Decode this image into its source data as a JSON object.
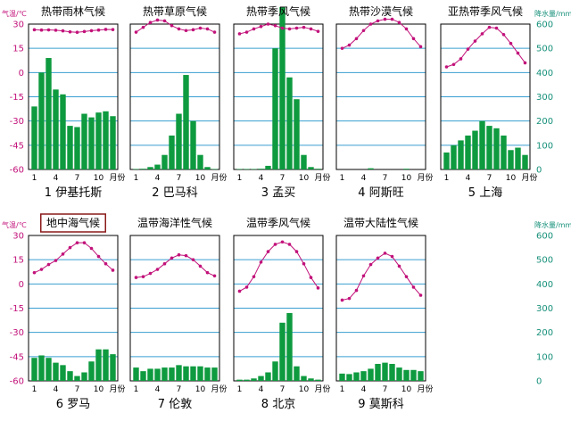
{
  "labels": {
    "temp_axis": "气温/℃",
    "precip_axis": "降水量/mm",
    "month_unit": "月份",
    "month_ticks": [
      "1",
      "4",
      "7",
      "10"
    ],
    "temp_ticks": [
      "30",
      "15",
      "0",
      "-15",
      "-30",
      "-45",
      "-60"
    ],
    "precip_ticks": [
      "600",
      "500",
      "400",
      "300",
      "200",
      "100",
      "0"
    ]
  },
  "colors": {
    "temp_line": "#c2127a",
    "bars": "#0e9a3f",
    "axis_text_left": "#c2127a",
    "axis_text_right": "#16907a",
    "grid": "#3a9fd1",
    "highlight_box": "#8b1a1a"
  },
  "chart_data": [
    {
      "type": "bar",
      "title": "热带雨林气候",
      "caption": "1 伊基托斯",
      "highlight": false,
      "months": [
        1,
        2,
        3,
        4,
        5,
        6,
        7,
        8,
        9,
        10,
        11,
        12
      ],
      "temperature_c": [
        26.5,
        26.3,
        26.4,
        26.2,
        25.8,
        25.2,
        24.9,
        25.4,
        25.9,
        26.3,
        26.7,
        26.6
      ],
      "precipitation_mm": [
        260,
        400,
        460,
        330,
        310,
        180,
        175,
        230,
        215,
        235,
        240,
        220
      ],
      "ylim_temp": [
        -60,
        30
      ],
      "ylim_precip": [
        0,
        600
      ]
    },
    {
      "type": "bar",
      "title": "热带草原气候",
      "caption": "2 巴马科",
      "highlight": false,
      "months": [
        1,
        2,
        3,
        4,
        5,
        6,
        7,
        8,
        9,
        10,
        11,
        12
      ],
      "temperature_c": [
        25,
        28,
        31,
        32.5,
        32,
        29,
        27,
        26,
        26.5,
        27.5,
        27,
        25
      ],
      "precipitation_mm": [
        2,
        3,
        10,
        20,
        60,
        140,
        230,
        390,
        200,
        60,
        10,
        2
      ],
      "ylim_temp": [
        -60,
        30
      ],
      "ylim_precip": [
        0,
        600
      ]
    },
    {
      "type": "bar",
      "title": "热带季风气候",
      "caption": "3 孟买",
      "highlight": false,
      "months": [
        1,
        2,
        3,
        4,
        5,
        6,
        7,
        8,
        9,
        10,
        11,
        12
      ],
      "temperature_c": [
        24,
        25,
        27,
        28.5,
        30,
        29,
        27.5,
        27,
        27.5,
        28,
        27,
        25.5
      ],
      "precipitation_mm": [
        2,
        2,
        2,
        3,
        15,
        500,
        670,
        380,
        290,
        60,
        10,
        3
      ],
      "ylim_temp": [
        -60,
        30
      ],
      "ylim_precip": [
        0,
        600
      ]
    },
    {
      "type": "bar",
      "title": "热带沙漠气候",
      "caption": "4 阿斯旺",
      "highlight": false,
      "months": [
        1,
        2,
        3,
        4,
        5,
        6,
        7,
        8,
        9,
        10,
        11,
        12
      ],
      "temperature_c": [
        15,
        17,
        21,
        26,
        30,
        32,
        33,
        33,
        31,
        27,
        21,
        16
      ],
      "precipitation_mm": [
        0,
        0,
        0,
        0,
        5,
        0,
        0,
        0,
        0,
        3,
        0,
        0
      ],
      "ylim_temp": [
        -60,
        30
      ],
      "ylim_precip": [
        0,
        600
      ]
    },
    {
      "type": "bar",
      "title": "亚热带季风气候",
      "caption": "5 上海",
      "highlight": false,
      "months": [
        1,
        2,
        3,
        4,
        5,
        6,
        7,
        8,
        9,
        10,
        11,
        12
      ],
      "temperature_c": [
        3.5,
        5,
        8.5,
        14.5,
        19.5,
        24,
        28,
        27.5,
        23.5,
        18,
        12,
        6
      ],
      "precipitation_mm": [
        70,
        100,
        120,
        140,
        160,
        200,
        180,
        170,
        140,
        80,
        90,
        60
      ],
      "ylim_temp": [
        -60,
        30
      ],
      "ylim_precip": [
        0,
        600
      ]
    },
    {
      "type": "bar",
      "title": "地中海气候",
      "caption": "6 罗马",
      "highlight": true,
      "months": [
        1,
        2,
        3,
        4,
        5,
        6,
        7,
        8,
        9,
        10,
        11,
        12
      ],
      "temperature_c": [
        7,
        9,
        12,
        14.5,
        18.5,
        22.5,
        25.5,
        25.5,
        22,
        17,
        12.5,
        8.5
      ],
      "precipitation_mm": [
        95,
        105,
        95,
        75,
        65,
        40,
        20,
        35,
        80,
        130,
        130,
        110
      ],
      "ylim_temp": [
        -60,
        30
      ],
      "ylim_precip": [
        0,
        600
      ]
    },
    {
      "type": "bar",
      "title": "温带海洋性气候",
      "caption": "7 伦敦",
      "highlight": false,
      "months": [
        1,
        2,
        3,
        4,
        5,
        6,
        7,
        8,
        9,
        10,
        11,
        12
      ],
      "temperature_c": [
        4,
        4.5,
        6.5,
        9,
        12.5,
        16,
        18,
        17.5,
        15,
        11,
        7,
        5
      ],
      "precipitation_mm": [
        55,
        40,
        50,
        50,
        55,
        55,
        65,
        60,
        60,
        60,
        55,
        55
      ],
      "ylim_temp": [
        -60,
        30
      ],
      "ylim_precip": [
        0,
        600
      ]
    },
    {
      "type": "bar",
      "title": "温带季风气候",
      "caption": "8 北京",
      "highlight": false,
      "months": [
        1,
        2,
        3,
        4,
        5,
        6,
        7,
        8,
        9,
        10,
        11,
        12
      ],
      "temperature_c": [
        -4.5,
        -2,
        4.5,
        13.5,
        20,
        24.5,
        26,
        24.5,
        20,
        12.5,
        4,
        -2.5
      ],
      "precipitation_mm": [
        5,
        5,
        10,
        20,
        35,
        80,
        240,
        280,
        60,
        20,
        10,
        5
      ],
      "ylim_temp": [
        -60,
        30
      ],
      "ylim_precip": [
        0,
        600
      ]
    },
    {
      "type": "bar",
      "title": "温带大陆性气候",
      "caption": "9 莫斯科",
      "highlight": false,
      "months": [
        1,
        2,
        3,
        4,
        5,
        6,
        7,
        8,
        9,
        10,
        11,
        12
      ],
      "temperature_c": [
        -10,
        -9,
        -4,
        5,
        12,
        16,
        19,
        17,
        11,
        4.5,
        -2,
        -7
      ],
      "precipitation_mm": [
        30,
        28,
        35,
        40,
        50,
        70,
        75,
        70,
        55,
        45,
        45,
        40
      ],
      "ylim_temp": [
        -60,
        30
      ],
      "ylim_precip": [
        0,
        600
      ]
    }
  ]
}
